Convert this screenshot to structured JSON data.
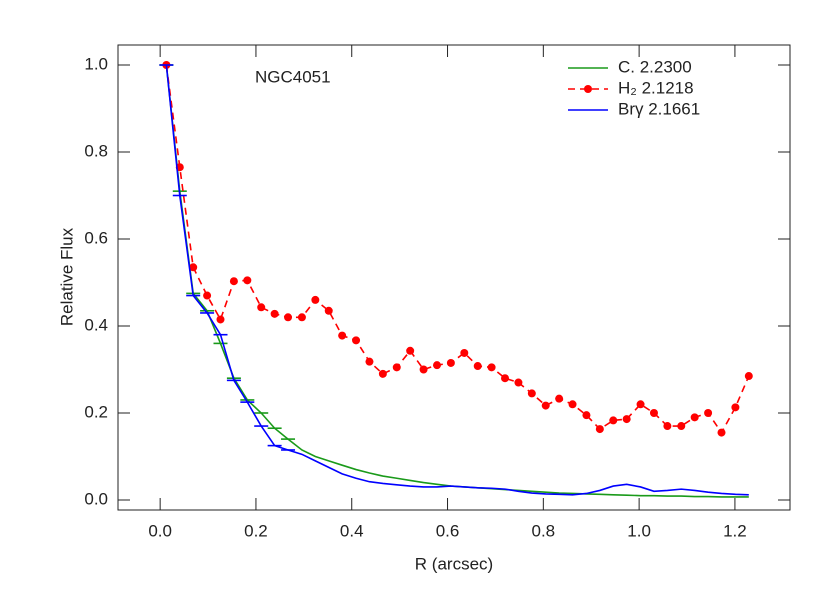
{
  "chart_data": {
    "type": "line",
    "annotation": "NGC4051",
    "xlabel": "R (arcsec)",
    "ylabel": "Relative Flux",
    "xlim": [
      -0.088,
      1.315
    ],
    "ylim": [
      -0.023,
      1.046
    ],
    "xticks": [
      {
        "value": 0,
        "label": "0.0"
      },
      0.2,
      0.4,
      0.6,
      0.8,
      {
        "value": 1,
        "label": "1.0"
      },
      1.2
    ],
    "yticks": [
      {
        "value": 0,
        "label": "0.0"
      },
      0.2,
      0.4,
      0.6,
      0.8,
      {
        "value": 1,
        "label": "1.0"
      }
    ],
    "legend": "upper right",
    "x": [
      0.013,
      0.041,
      0.069,
      0.098,
      0.126,
      0.154,
      0.182,
      0.211,
      0.239,
      0.267,
      0.296,
      0.324,
      0.352,
      0.38,
      0.409,
      0.437,
      0.465,
      0.494,
      0.522,
      0.55,
      0.578,
      0.607,
      0.635,
      0.663,
      0.692,
      0.72,
      0.748,
      0.776,
      0.805,
      0.833,
      0.861,
      0.89,
      0.918,
      0.946,
      0.974,
      1.003,
      1.031,
      1.059,
      1.088,
      1.116,
      1.144,
      1.172,
      1.201,
      1.229
    ],
    "series": [
      {
        "name": "C. 2.2300",
        "color": "#1a9a1a",
        "style": "solid",
        "values": [
          1.0,
          0.71,
          0.475,
          0.435,
          0.36,
          0.28,
          0.23,
          0.2,
          0.165,
          0.14,
          0.115,
          0.1,
          0.09,
          0.08,
          0.07,
          0.062,
          0.055,
          0.05,
          0.045,
          0.04,
          0.036,
          0.032,
          0.03,
          0.028,
          0.026,
          0.024,
          0.022,
          0.02,
          0.018,
          0.016,
          0.015,
          0.014,
          0.013,
          0.012,
          0.011,
          0.01,
          0.01,
          0.009,
          0.009,
          0.008,
          0.008,
          0.007,
          0.007,
          0.007
        ]
      },
      {
        "name": "H₂ 2.1218",
        "color": "#ff0000",
        "style": "dashed",
        "marker": "circle",
        "values": [
          1.0,
          0.765,
          0.535,
          0.47,
          0.415,
          0.503,
          0.505,
          0.443,
          0.428,
          0.42,
          0.42,
          0.46,
          0.435,
          0.378,
          0.367,
          0.318,
          0.29,
          0.305,
          0.343,
          0.3,
          0.31,
          0.315,
          0.338,
          0.308,
          0.305,
          0.28,
          0.27,
          0.245,
          0.217,
          0.233,
          0.22,
          0.195,
          0.163,
          0.183,
          0.186,
          0.22,
          0.2,
          0.17,
          0.17,
          0.19,
          0.2,
          0.155,
          0.213,
          0.285
        ]
      },
      {
        "name": "Brγ 2.1661",
        "color": "#0000ff",
        "style": "solid",
        "values": [
          1.0,
          0.7,
          0.47,
          0.43,
          0.38,
          0.275,
          0.225,
          0.17,
          0.125,
          0.115,
          0.105,
          0.09,
          0.075,
          0.06,
          0.05,
          0.042,
          0.038,
          0.035,
          0.032,
          0.03,
          0.03,
          0.032,
          0.03,
          0.028,
          0.027,
          0.025,
          0.02,
          0.016,
          0.014,
          0.013,
          0.012,
          0.015,
          0.022,
          0.032,
          0.036,
          0.03,
          0.02,
          0.022,
          0.025,
          0.022,
          0.018,
          0.015,
          0.013,
          0.012
        ]
      }
    ]
  }
}
